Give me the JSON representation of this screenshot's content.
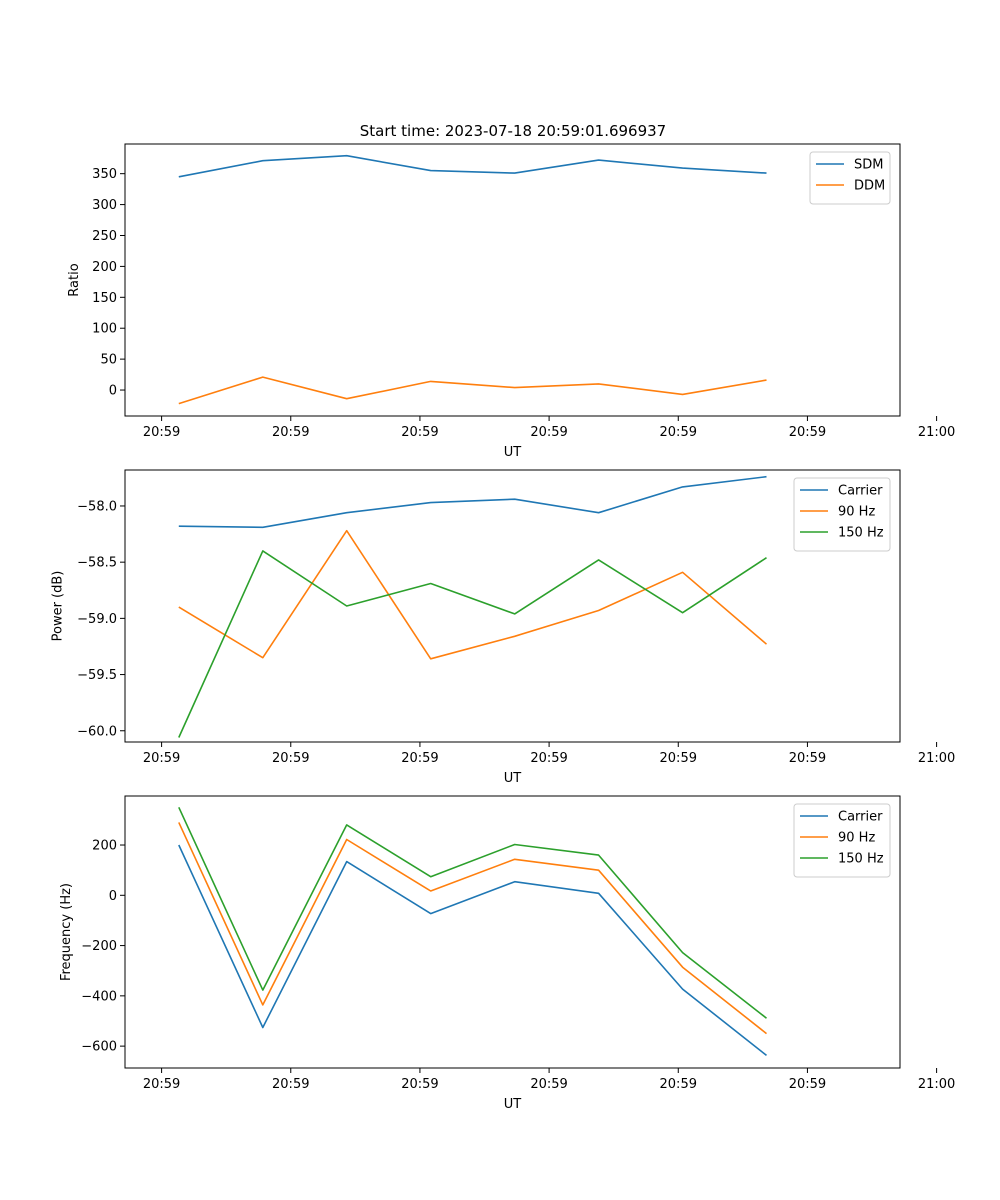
{
  "figure": {
    "title": "Start time: 2023-07-18 20:59:01.696937"
  },
  "chart_data": [
    {
      "type": "line",
      "title": "Start time: 2023-07-18 20:59:01.696937",
      "xlabel": "UT",
      "ylabel": "Ratio",
      "xlim": [
        -0.5,
        8.5
      ],
      "ylim": [
        -42,
        398
      ],
      "x": [
        0.125,
        1.1,
        2.075,
        3.05,
        4.025,
        5.0,
        5.975,
        6.95
      ],
      "xticks": [
        {
          "v": -0.075,
          "label": "20:59"
        },
        {
          "v": 1.425,
          "label": "20:59"
        },
        {
          "v": 2.925,
          "label": "20:59"
        },
        {
          "v": 4.425,
          "label": "20:59"
        },
        {
          "v": 5.925,
          "label": "20:59"
        },
        {
          "v": 7.425,
          "label": "20:59"
        },
        {
          "v": 8.925,
          "label": "21:00"
        }
      ],
      "yticks": [
        {
          "v": 0,
          "label": "0"
        },
        {
          "v": 50,
          "label": "50"
        },
        {
          "v": 100,
          "label": "100"
        },
        {
          "v": 150,
          "label": "150"
        },
        {
          "v": 200,
          "label": "200"
        },
        {
          "v": 250,
          "label": "250"
        },
        {
          "v": 300,
          "label": "300"
        },
        {
          "v": 350,
          "label": "350"
        }
      ],
      "legend_position": "upper right",
      "series": [
        {
          "name": "SDM",
          "color": "#1f77b4",
          "values": [
            345,
            371,
            379,
            355,
            351,
            372,
            359,
            351
          ]
        },
        {
          "name": "DDM",
          "color": "#ff7f0e",
          "values": [
            -22,
            21,
            -14,
            14,
            4,
            10,
            -7,
            16
          ]
        }
      ]
    },
    {
      "type": "line",
      "title": "",
      "xlabel": "UT",
      "ylabel": "Power (dB)",
      "xlim": [
        -0.5,
        8.5
      ],
      "ylim": [
        -60.1,
        -57.68
      ],
      "x": [
        0.125,
        1.1,
        2.075,
        3.05,
        4.025,
        5.0,
        5.975,
        6.95
      ],
      "xticks": [
        {
          "v": -0.075,
          "label": "20:59"
        },
        {
          "v": 1.425,
          "label": "20:59"
        },
        {
          "v": 2.925,
          "label": "20:59"
        },
        {
          "v": 4.425,
          "label": "20:59"
        },
        {
          "v": 5.925,
          "label": "20:59"
        },
        {
          "v": 7.425,
          "label": "20:59"
        },
        {
          "v": 8.925,
          "label": "21:00"
        }
      ],
      "yticks": [
        {
          "v": -60.0,
          "label": "−60.0"
        },
        {
          "v": -59.5,
          "label": "−59.5"
        },
        {
          "v": -59.0,
          "label": "−59.0"
        },
        {
          "v": -58.5,
          "label": "−58.5"
        },
        {
          "v": -58.0,
          "label": "−58.0"
        }
      ],
      "legend_position": "upper right",
      "series": [
        {
          "name": "Carrier",
          "color": "#1f77b4",
          "values": [
            -58.18,
            -58.19,
            -58.06,
            -57.97,
            -57.94,
            -58.06,
            -57.83,
            -57.74
          ]
        },
        {
          "name": "90 Hz",
          "color": "#ff7f0e",
          "values": [
            -58.9,
            -59.35,
            -58.22,
            -59.36,
            -59.16,
            -58.93,
            -58.59,
            -59.23
          ]
        },
        {
          "name": "150 Hz",
          "color": "#2ca02c",
          "values": [
            -60.06,
            -58.4,
            -58.89,
            -58.69,
            -58.96,
            -58.48,
            -58.95,
            -58.46
          ]
        }
      ]
    },
    {
      "type": "line",
      "title": "",
      "xlabel": "UT",
      "ylabel": "Frequency (Hz)",
      "xlim": [
        -0.5,
        8.5
      ],
      "ylim": [
        -687,
        395
      ],
      "x": [
        0.125,
        1.1,
        2.075,
        3.05,
        4.025,
        5.0,
        5.975,
        6.95
      ],
      "xticks": [
        {
          "v": -0.075,
          "label": "20:59"
        },
        {
          "v": 1.425,
          "label": "20:59"
        },
        {
          "v": 2.925,
          "label": "20:59"
        },
        {
          "v": 4.425,
          "label": "20:59"
        },
        {
          "v": 5.925,
          "label": "20:59"
        },
        {
          "v": 7.425,
          "label": "20:59"
        },
        {
          "v": 8.925,
          "label": "21:00"
        }
      ],
      "yticks": [
        {
          "v": -600,
          "label": "−600"
        },
        {
          "v": -400,
          "label": "−400"
        },
        {
          "v": -200,
          "label": "−200"
        },
        {
          "v": 0,
          "label": "0"
        },
        {
          "v": 200,
          "label": "200"
        }
      ],
      "legend_position": "upper right",
      "series": [
        {
          "name": "Carrier",
          "color": "#1f77b4",
          "values": [
            200,
            -526,
            134,
            -73,
            54,
            8,
            -373,
            -637
          ]
        },
        {
          "name": "90 Hz",
          "color": "#ff7f0e",
          "values": [
            290,
            -436,
            222,
            17,
            143,
            100,
            -286,
            -550
          ]
        },
        {
          "name": "150 Hz",
          "color": "#2ca02c",
          "values": [
            350,
            -377,
            280,
            74,
            202,
            160,
            -228,
            -489
          ]
        }
      ]
    }
  ]
}
